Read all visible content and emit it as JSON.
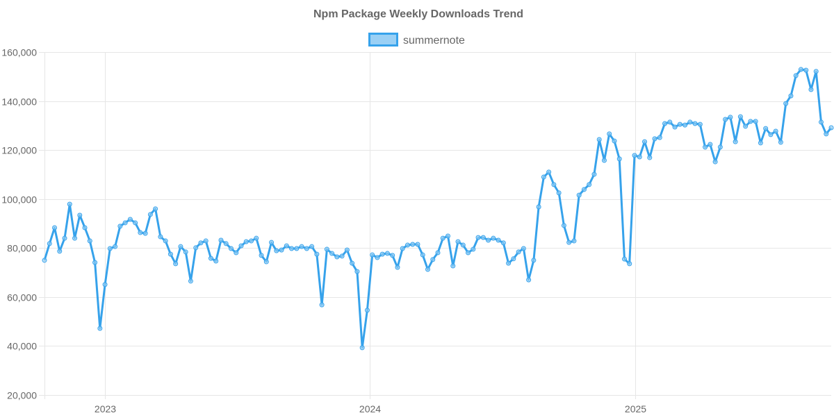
{
  "chart_data": {
    "type": "line",
    "title": "Npm Package Weekly Downloads Trend",
    "xlabel": "",
    "ylabel": "",
    "ylim": [
      20000,
      160000
    ],
    "yticks": [
      20000,
      40000,
      60000,
      80000,
      100000,
      120000,
      140000,
      160000
    ],
    "ytick_labels": [
      "20,000",
      "40,000",
      "60,000",
      "80,000",
      "100,000",
      "120,000",
      "140,000",
      "160,000"
    ],
    "x_unit": "week index",
    "xticks": [
      {
        "label": "2023",
        "at": 12.05
      },
      {
        "label": "2024",
        "at": 64.5
      },
      {
        "label": "2025",
        "at": 117.1
      }
    ],
    "grid": true,
    "legend_position": "top",
    "colors": {
      "line": "#36a2eb",
      "fill": "#9ad0f5",
      "grid": "#e6e6e6",
      "text": "#666666"
    },
    "series": [
      {
        "name": "summernote",
        "values": [
          75000,
          81800,
          88300,
          78700,
          84000,
          97900,
          84000,
          93400,
          88300,
          82900,
          74100,
          47200,
          65100,
          79800,
          80600,
          88900,
          90300,
          91700,
          90300,
          86300,
          86000,
          93700,
          96000,
          84600,
          82900,
          77500,
          73600,
          80600,
          78400,
          66500,
          80100,
          82100,
          82900,
          75800,
          74700,
          83200,
          81800,
          79800,
          78100,
          80900,
          82600,
          82900,
          84000,
          77000,
          74400,
          82300,
          78900,
          79200,
          80900,
          79800,
          79800,
          80600,
          79800,
          80600,
          77500,
          56800,
          79500,
          77800,
          76400,
          76700,
          79200,
          73800,
          70400,
          39300,
          54600,
          77200,
          76100,
          77500,
          77800,
          77000,
          72100,
          79800,
          81200,
          81500,
          81500,
          77200,
          71300,
          75300,
          78100,
          84000,
          84900,
          72700,
          82600,
          81200,
          78100,
          79500,
          84300,
          84300,
          83200,
          84000,
          83200,
          82100,
          73800,
          75600,
          78400,
          79800,
          67000,
          75000,
          96800,
          109000,
          111000,
          105900,
          102500,
          89200,
          82300,
          82900,
          101600,
          103900,
          105900,
          110100,
          124300,
          115800,
          126600,
          123700,
          116400,
          75500,
          73600,
          117800,
          117200,
          123400,
          116900,
          124600,
          125100,
          130800,
          131400,
          129400,
          130500,
          130200,
          131400,
          130800,
          130500,
          121200,
          122300,
          115200,
          121200,
          132500,
          133400,
          123400,
          133600,
          129700,
          131700,
          131700,
          122900,
          128800,
          126300,
          127700,
          123200,
          139000,
          142100,
          150400,
          152900,
          152600,
          144700,
          152100,
          131400,
          126600,
          129100
        ]
      }
    ]
  }
}
